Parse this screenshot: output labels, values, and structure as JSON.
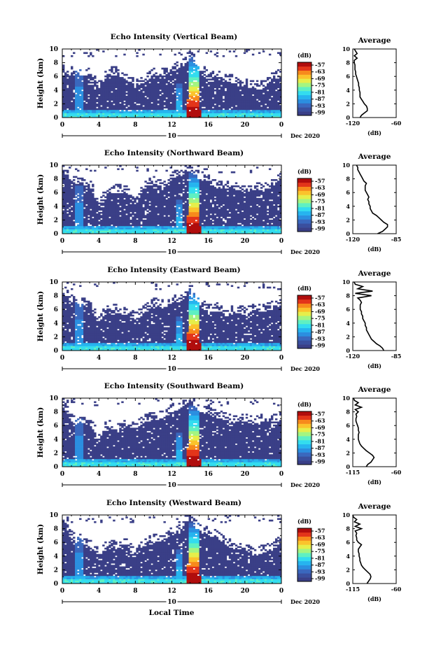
{
  "colors": {
    "background_fill": "#3a3f87",
    "colormap": [
      "#3a3f87",
      "#3a4f9e",
      "#3a68be",
      "#2b8fe0",
      "#26b4ef",
      "#33dcef",
      "#5ff0c2",
      "#a4f581",
      "#e6ee4a",
      "#fbc32c",
      "#f78a1c",
      "#e3351a",
      "#b00d0d"
    ]
  },
  "xlabel": "Local Time",
  "chart_data": [
    {
      "type": "heatmap",
      "title": "Echo Intensity (Vertical Beam)",
      "ylabel": "Height (km)",
      "x_ticks": [
        "0",
        "4",
        "8",
        "12",
        "16",
        "20",
        "0"
      ],
      "y_ticks": [
        "0",
        "2",
        "4",
        "6",
        "8",
        "10"
      ],
      "xlim": [
        0,
        24
      ],
      "ylim": [
        0,
        10
      ],
      "date_marker": "10",
      "date_label": "Dec 2020",
      "colorbar": {
        "unit": "(dB)",
        "ticks": [
          "-57",
          "-63",
          "-69",
          "-75",
          "-81",
          "-87",
          "-93",
          "-99"
        ]
      },
      "profile": {
        "title": "Average",
        "xlabel": "(dB)",
        "x_ticks": [
          "-120",
          "-60"
        ],
        "xlim": [
          -120,
          -60
        ],
        "y_ticks": [
          "0",
          "2",
          "4",
          "6",
          "8",
          "10"
        ]
      },
      "cloud_top_km": [
        6.5,
        6.2,
        6.2,
        6.3,
        4.3,
        6.2,
        6.2,
        5.5,
        4.5,
        5.0,
        6.3,
        6.0,
        6.8,
        7.0,
        8.8,
        7.0,
        5.6,
        5.6,
        5.2,
        5.0,
        4.5,
        4.2,
        4.2,
        5.6,
        6.0
      ],
      "profile_db": [
        -110,
        -108,
        -104,
        -100,
        -100,
        -101,
        -104,
        -106,
        -108,
        -110,
        -110,
        -110,
        -111,
        -111,
        -112,
        -112,
        -113,
        -114,
        -115,
        -116,
        -116,
        -117,
        -117,
        -117,
        -118,
        -118,
        -114,
        -118,
        -114,
        -116,
        -118
      ],
      "noise": 0.3
    },
    {
      "type": "heatmap",
      "title": "Echo Intensity (Northward Beam)",
      "ylabel": "Height (km)",
      "x_ticks": [
        "0",
        "4",
        "8",
        "12",
        "16",
        "20",
        "0"
      ],
      "y_ticks": [
        "0",
        "2",
        "4",
        "6",
        "8",
        "10"
      ],
      "xlim": [
        0,
        24
      ],
      "ylim": [
        0,
        10
      ],
      "date_marker": "10",
      "date_label": "Dec 2020",
      "colorbar": {
        "unit": "(dB)",
        "ticks": [
          "-57",
          "-63",
          "-69",
          "-75",
          "-81",
          "-87",
          "-93",
          "-99"
        ]
      },
      "profile": {
        "title": "Average",
        "xlabel": "(dB)",
        "x_ticks": [
          "-120",
          "-85"
        ],
        "xlim": [
          -120,
          -85
        ],
        "y_ticks": [
          "0",
          "2",
          "4",
          "6",
          "8",
          "10"
        ]
      },
      "cloud_top_km": [
        9.2,
        7.5,
        7.2,
        7.0,
        4.0,
        6.0,
        6.0,
        6.0,
        4.0,
        6.5,
        7.2,
        6.6,
        8.0,
        8.5,
        9.2,
        8.0,
        7.4,
        6.5,
        6.5,
        6.5,
        6.0,
        6.5,
        6.2,
        6.8,
        8.0
      ],
      "profile_db": [
        -100,
        -96,
        -94,
        -92,
        -92,
        -95,
        -97,
        -99,
        -101,
        -104,
        -105,
        -106,
        -106,
        -107,
        -107,
        -108,
        -107,
        -108,
        -109,
        -110,
        -110,
        -110,
        -109,
        -111,
        -112,
        -113,
        -114,
        -115,
        -116,
        -116,
        -117
      ],
      "noise": 0.3
    },
    {
      "type": "heatmap",
      "title": "Echo Intensity (Eastward Beam)",
      "ylabel": "Height (km)",
      "x_ticks": [
        "0",
        "4",
        "8",
        "12",
        "16",
        "20",
        "0"
      ],
      "y_ticks": [
        "0",
        "2",
        "4",
        "6",
        "8",
        "10"
      ],
      "xlim": [
        0,
        24
      ],
      "ylim": [
        0,
        10
      ],
      "date_marker": "10",
      "date_label": "Dec 2020",
      "colorbar": {
        "unit": "(dB)",
        "ticks": [
          "-57",
          "-63",
          "-69",
          "-75",
          "-81",
          "-87",
          "-93",
          "-99"
        ]
      },
      "profile": {
        "title": "Average",
        "xlabel": "(dB)",
        "x_ticks": [
          "-120",
          "-85"
        ],
        "xlim": [
          -120,
          -85
        ],
        "y_ticks": [
          "0",
          "2",
          "4",
          "6",
          "8",
          "10"
        ]
      },
      "cloud_top_km": [
        8.5,
        7.0,
        6.6,
        6.2,
        4.0,
        5.8,
        5.5,
        5.2,
        4.5,
        5.4,
        6.5,
        6.2,
        6.8,
        7.2,
        8.0,
        6.6,
        5.5,
        5.8,
        5.0,
        5.5,
        5.2,
        5.8,
        5.6,
        6.0,
        6.6
      ],
      "profile_db": [
        -95,
        -96,
        -98,
        -101,
        -103,
        -105,
        -106,
        -107,
        -108,
        -109,
        -109,
        -110,
        -110,
        -111,
        -112,
        -112,
        -113,
        -113,
        -114,
        -114,
        -114,
        -113,
        -114,
        -116,
        -105,
        -118,
        -104,
        -116,
        -112,
        -118,
        -119
      ],
      "noise": 0.3
    },
    {
      "type": "heatmap",
      "title": "Echo Intensity (Southward Beam)",
      "ylabel": "Height (km)",
      "x_ticks": [
        "0",
        "4",
        "8",
        "12",
        "16",
        "20",
        "0"
      ],
      "y_ticks": [
        "0",
        "2",
        "4",
        "6",
        "8",
        "10"
      ],
      "xlim": [
        0,
        24
      ],
      "ylim": [
        0,
        10
      ],
      "date_marker": "10",
      "date_label": "Dec 2020",
      "colorbar": {
        "unit": "(dB)",
        "ticks": [
          "-57",
          "-63",
          "-69",
          "-75",
          "-81",
          "-87",
          "-93",
          "-99"
        ]
      },
      "profile": {
        "title": "Average",
        "xlabel": "(dB)",
        "x_ticks": [
          "-115",
          "-60"
        ],
        "xlim": [
          -115,
          -60
        ],
        "y_ticks": [
          "0",
          "2",
          "4",
          "6",
          "8",
          "10"
        ]
      },
      "cloud_top_km": [
        9.0,
        6.5,
        6.0,
        6.2,
        4.0,
        5.8,
        5.2,
        5.8,
        5.5,
        6.5,
        6.8,
        7.0,
        8.0,
        8.5,
        9.6,
        8.0,
        7.6,
        7.0,
        6.8,
        6.5,
        6.6,
        6.2,
        6.5,
        6.5,
        6.8
      ],
      "profile_db": [
        -98,
        -96,
        -92,
        -90,
        -88,
        -90,
        -94,
        -98,
        -101,
        -104,
        -106,
        -107,
        -108,
        -108,
        -108,
        -107,
        -108,
        -108,
        -109,
        -110,
        -111,
        -111,
        -110,
        -111,
        -108,
        -112,
        -104,
        -112,
        -108,
        -113,
        -114
      ],
      "noise": 0.3
    },
    {
      "type": "heatmap",
      "title": "Echo Intensity (Westward Beam)",
      "ylabel": "Height (km)",
      "x_ticks": [
        "0",
        "4",
        "8",
        "12",
        "16",
        "20",
        "0"
      ],
      "y_ticks": [
        "0",
        "2",
        "4",
        "6",
        "8",
        "10"
      ],
      "xlim": [
        0,
        24
      ],
      "ylim": [
        0,
        10
      ],
      "date_marker": "10",
      "date_label": "Dec 2020",
      "colorbar": {
        "unit": "(dB)",
        "ticks": [
          "-57",
          "-63",
          "-69",
          "-75",
          "-81",
          "-87",
          "-93",
          "-99"
        ]
      },
      "profile": {
        "title": "Average",
        "xlabel": "(dB)",
        "x_ticks": [
          "-115",
          "-60"
        ],
        "xlim": [
          -115,
          -60
        ],
        "y_ticks": [
          "0",
          "2",
          "4",
          "6",
          "8",
          "10"
        ]
      },
      "cloud_top_km": [
        8.8,
        6.5,
        6.0,
        5.5,
        4.0,
        5.2,
        5.0,
        5.5,
        4.0,
        5.5,
        6.0,
        6.2,
        7.0,
        8.0,
        9.6,
        7.5,
        7.0,
        6.6,
        5.5,
        5.0,
        5.0,
        4.0,
        4.5,
        5.0,
        5.8
      ],
      "profile_db": [
        -97,
        -95,
        -93,
        -92,
        -93,
        -96,
        -99,
        -102,
        -104,
        -105,
        -106,
        -106,
        -107,
        -107,
        -108,
        -108,
        -106,
        -104,
        -108,
        -110,
        -110,
        -111,
        -110,
        -112,
        -104,
        -112,
        -106,
        -113,
        -110,
        -114,
        -115
      ],
      "noise": 0.3
    }
  ]
}
